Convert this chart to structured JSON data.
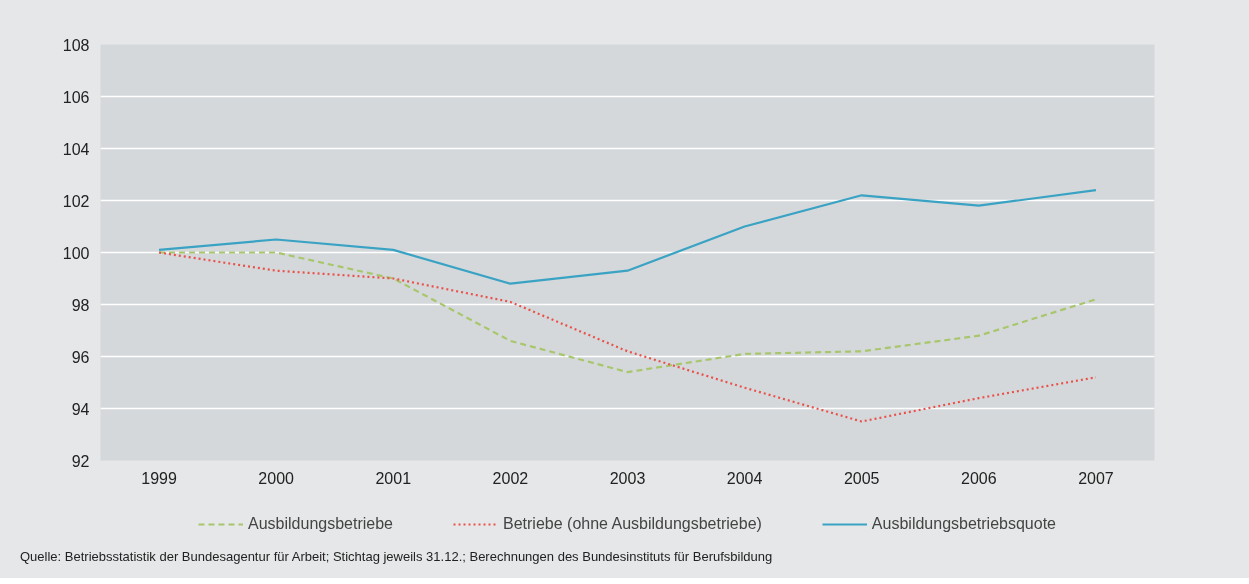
{
  "chart_data": {
    "type": "line",
    "categories": [
      "1999",
      "2000",
      "2001",
      "2002",
      "2003",
      "2004",
      "2005",
      "2006",
      "2007"
    ],
    "series": [
      {
        "name": "Ausbildungsbetriebe",
        "color": "#a8c66c",
        "line_style": "dashed",
        "values": [
          100.0,
          100.0,
          99.0,
          96.6,
          95.4,
          96.1,
          96.2,
          96.8,
          98.2
        ]
      },
      {
        "name": "Betriebe (ohne Ausbildungsbetriebe)",
        "color": "#e8524a",
        "line_style": "dotted",
        "values": [
          100.0,
          99.3,
          99.0,
          98.1,
          96.2,
          94.8,
          93.5,
          94.4,
          95.2
        ]
      },
      {
        "name": "Ausbildungsbetriebsquote",
        "color": "#3aa3c4",
        "line_style": "solid",
        "values": [
          100.1,
          100.5,
          100.1,
          98.8,
          99.3,
          101.0,
          102.2,
          101.8,
          102.4
        ]
      }
    ],
    "ylim": [
      92,
      108
    ],
    "yticks": [
      92,
      94,
      96,
      98,
      100,
      102,
      104,
      106,
      108
    ],
    "grid": "y",
    "legend": "bottom",
    "marker": "none",
    "annotations": [
      "Quelle: Betriebsstatistik der Bundesagentur für Arbeit; Stichtag jeweils 31.12.; Berechnungen des Bundesinstituts für Berufsbildung"
    ]
  }
}
